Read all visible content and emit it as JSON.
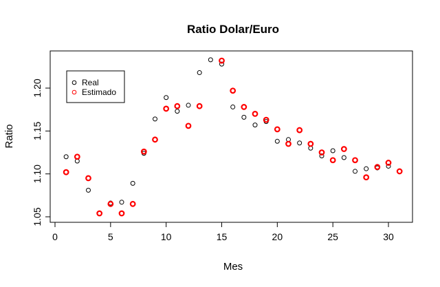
{
  "chart_data": {
    "type": "scatter",
    "title": "Ratio Dolar/Euro",
    "xlabel": "Mes",
    "ylabel": "Ratio",
    "xlim": [
      0,
      32
    ],
    "ylim": [
      1.05,
      1.24
    ],
    "xticks": [
      "0",
      "5",
      "10",
      "15",
      "20",
      "25",
      "30"
    ],
    "yticks": [
      "1.05",
      "1.10",
      "1.15",
      "1.20"
    ],
    "legend": {
      "position": "top-left",
      "entries": [
        {
          "label": "Real",
          "color": "#000000"
        },
        {
          "label": "Estimado",
          "color": "#ff0000"
        }
      ]
    },
    "x": [
      1,
      2,
      3,
      4,
      5,
      6,
      7,
      8,
      9,
      10,
      11,
      12,
      13,
      14,
      15,
      16,
      17,
      18,
      19,
      20,
      21,
      22,
      23,
      24,
      25,
      26,
      27,
      28,
      29,
      30,
      31
    ],
    "series": [
      {
        "name": "Real",
        "color": "#000000",
        "values": [
          1.12,
          1.115,
          1.081,
          1.054,
          1.066,
          1.067,
          1.089,
          1.124,
          1.164,
          1.189,
          1.173,
          1.18,
          1.218,
          1.233,
          1.228,
          1.178,
          1.166,
          1.157,
          1.161,
          1.138,
          1.14,
          1.136,
          1.13,
          1.121,
          1.127,
          1.119,
          1.103,
          1.106,
          1.107,
          1.109,
          1.103
        ]
      },
      {
        "name": "Estimado",
        "color": "#ff0000",
        "values": [
          1.102,
          1.12,
          1.095,
          1.054,
          1.065,
          1.054,
          1.065,
          1.126,
          1.14,
          1.176,
          1.179,
          1.156,
          1.179,
          null,
          1.232,
          1.197,
          1.178,
          1.17,
          1.163,
          1.152,
          1.135,
          1.151,
          1.135,
          1.125,
          1.116,
          1.129,
          1.116,
          1.096,
          1.108,
          1.113,
          1.103
        ]
      }
    ]
  }
}
